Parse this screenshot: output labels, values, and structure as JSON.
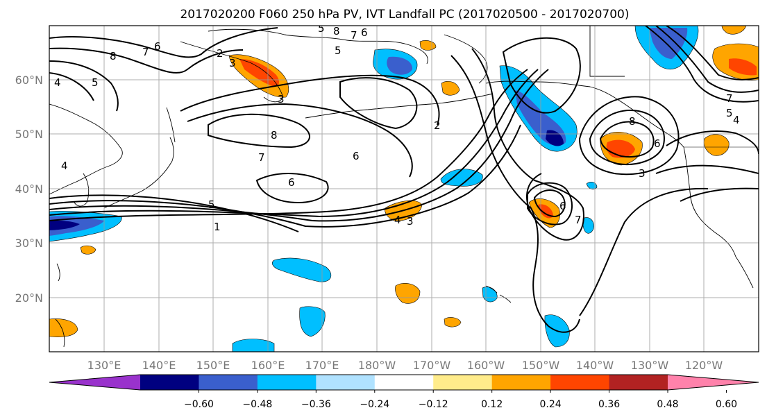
{
  "title": "2017020200 F060 250 hPa PV, IVT Landfall PC (2017020500 - 2017020700)",
  "lat_labels": [
    "60°N",
    "50°N",
    "40°N",
    "30°N",
    "20°N"
  ],
  "lon_labels": [
    "130°E",
    "140°E",
    "150°E",
    "160°E",
    "170°E",
    "180°W",
    "170°W",
    "160°W",
    "150°W",
    "140°W",
    "130°W",
    "120°W"
  ],
  "colorbar": {
    "colors": [
      "#9932cc",
      "#000080",
      "#3a5fcd",
      "#00bfff",
      "#b0e2ff",
      "#ffffff",
      "#ffec8b",
      "#ffa500",
      "#ff4500",
      "#b22222",
      "#ff82ab"
    ],
    "tick_labels": [
      "−0.60",
      "−0.48",
      "−0.36",
      "−0.24",
      "−0.12",
      "0.12",
      "0.24",
      "0.36",
      "0.48",
      "0.60"
    ]
  },
  "contour_labels": [
    "8",
    "7",
    "6",
    "5",
    "4",
    "3",
    "2",
    "1",
    "5",
    "6",
    "8",
    "7",
    "6",
    "5",
    "4",
    "3",
    "8",
    "7",
    "6",
    "5",
    "4",
    "3",
    "2",
    "7",
    "5",
    "4",
    "3",
    "6",
    "8",
    "7",
    "6"
  ]
}
